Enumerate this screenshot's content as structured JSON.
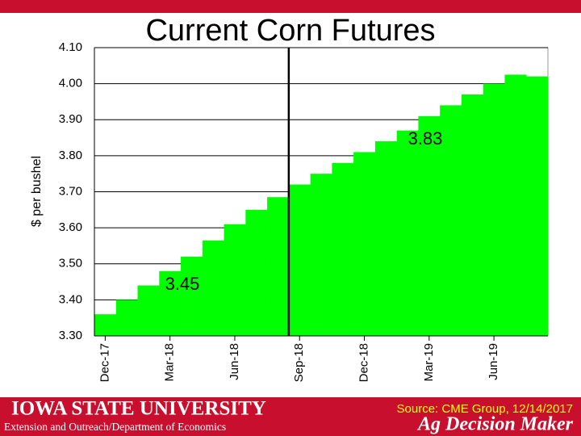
{
  "chart_data": {
    "type": "bar",
    "title": "Current Corn Futures",
    "y_label": "$ per bushel",
    "categories": [
      "Dec-17",
      null,
      null,
      "Mar-18",
      null,
      null,
      "Jun-18",
      null,
      null,
      "Sep-18",
      null,
      null,
      "Dec-18",
      null,
      null,
      "Mar-19",
      null,
      null,
      "Jun-19",
      null,
      null
    ],
    "values": [
      3.36,
      3.4,
      3.44,
      3.48,
      3.52,
      3.565,
      3.61,
      3.65,
      3.685,
      3.72,
      3.75,
      3.78,
      3.81,
      3.84,
      3.87,
      3.91,
      3.94,
      3.97,
      4.0,
      4.025,
      4.02
    ],
    "color": "#00ff00",
    "ylim": [
      3.3,
      4.1
    ],
    "yticks": [
      {
        "value": 3.3,
        "label": "3.30"
      },
      {
        "value": 3.4,
        "label": "3.40"
      },
      {
        "value": 3.5,
        "label": "3.50"
      },
      {
        "value": 3.6,
        "label": "3.60"
      },
      {
        "value": 3.7,
        "label": "3.70"
      },
      {
        "value": 3.8,
        "label": "3.80"
      },
      {
        "value": 3.9,
        "label": "3.90"
      },
      {
        "value": 4,
        "label": "4.00"
      },
      {
        "value": 4.1,
        "label": "4.10"
      }
    ],
    "grid": true,
    "annotations": [
      "3.45",
      "3.83"
    ]
  },
  "footer": {
    "university": "IOWA STATE UNIVERSITY",
    "department": "Extension and Outreach/Department of Economics",
    "source": "Source: CME Group, 12/14/2017",
    "brand": "Ag Decision Maker"
  }
}
